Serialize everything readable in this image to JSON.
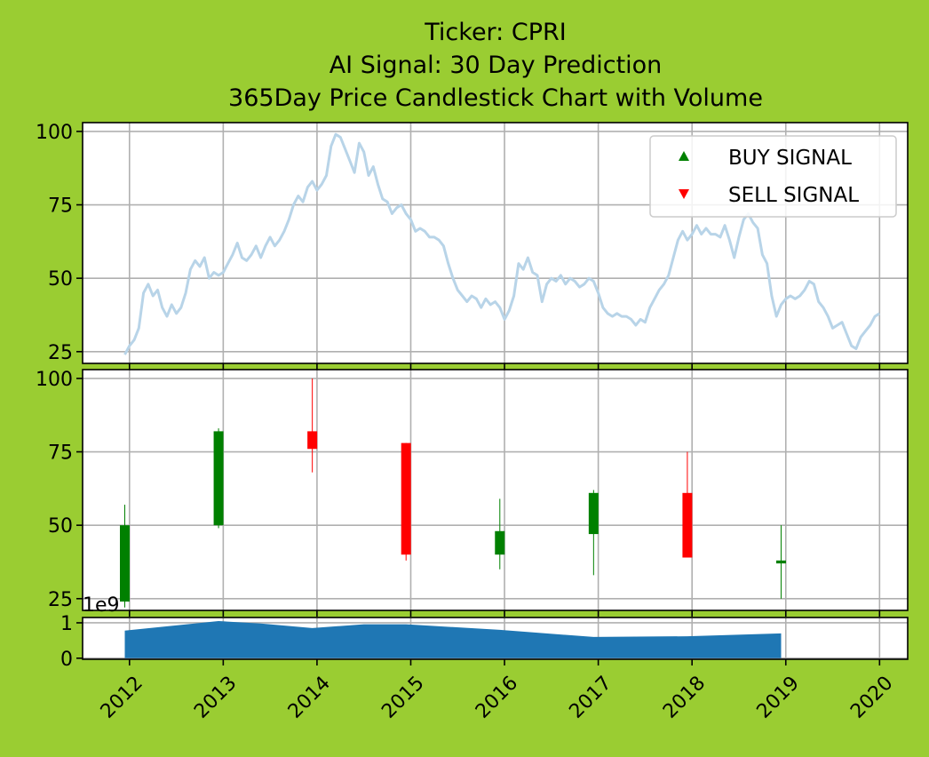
{
  "chart_data": {
    "title_lines": [
      "Ticker: CPRI",
      "AI Signal: 30 Day Prediction",
      "365Day Price Candlestick Chart with Volume"
    ],
    "type": "composite",
    "background_color": "#9acd32",
    "x_ticks": [
      "2012",
      "2013",
      "2014",
      "2015",
      "2016",
      "2017",
      "2018",
      "2019",
      "2020"
    ],
    "x_range": [
      2011.5,
      2020.3
    ],
    "grid": true,
    "price_panel": {
      "type": "line",
      "ylim": [
        21,
        103
      ],
      "y_ticks": [
        25,
        50,
        75,
        100
      ],
      "line_color": "#b8d4e8",
      "legend": {
        "position": "top-right",
        "entries": [
          {
            "label": "BUY SIGNAL",
            "marker": "triangle-up",
            "color": "#008000"
          },
          {
            "label": "SELL SIGNAL",
            "marker": "triangle-down",
            "color": "#ff0000"
          }
        ]
      },
      "points": [
        [
          2011.95,
          24
        ],
        [
          2012.0,
          27
        ],
        [
          2012.05,
          29
        ],
        [
          2012.1,
          33
        ],
        [
          2012.15,
          45
        ],
        [
          2012.2,
          48
        ],
        [
          2012.25,
          44
        ],
        [
          2012.3,
          46
        ],
        [
          2012.35,
          40
        ],
        [
          2012.4,
          37
        ],
        [
          2012.45,
          41
        ],
        [
          2012.5,
          38
        ],
        [
          2012.55,
          40
        ],
        [
          2012.6,
          45
        ],
        [
          2012.65,
          53
        ],
        [
          2012.7,
          56
        ],
        [
          2012.75,
          54
        ],
        [
          2012.8,
          57
        ],
        [
          2012.85,
          50
        ],
        [
          2012.9,
          52
        ],
        [
          2012.95,
          51
        ],
        [
          2013.0,
          52
        ],
        [
          2013.05,
          55
        ],
        [
          2013.1,
          58
        ],
        [
          2013.15,
          62
        ],
        [
          2013.2,
          57
        ],
        [
          2013.25,
          56
        ],
        [
          2013.3,
          58
        ],
        [
          2013.35,
          61
        ],
        [
          2013.4,
          57
        ],
        [
          2013.45,
          61
        ],
        [
          2013.5,
          64
        ],
        [
          2013.55,
          61
        ],
        [
          2013.6,
          63
        ],
        [
          2013.65,
          66
        ],
        [
          2013.7,
          70
        ],
        [
          2013.75,
          75
        ],
        [
          2013.8,
          78
        ],
        [
          2013.85,
          76
        ],
        [
          2013.9,
          81
        ],
        [
          2013.95,
          83
        ],
        [
          2014.0,
          80
        ],
        [
          2014.05,
          82
        ],
        [
          2014.1,
          85
        ],
        [
          2014.15,
          95
        ],
        [
          2014.2,
          99
        ],
        [
          2014.25,
          98
        ],
        [
          2014.3,
          94
        ],
        [
          2014.35,
          90
        ],
        [
          2014.4,
          86
        ],
        [
          2014.45,
          96
        ],
        [
          2014.5,
          93
        ],
        [
          2014.55,
          85
        ],
        [
          2014.6,
          88
        ],
        [
          2014.65,
          82
        ],
        [
          2014.7,
          77
        ],
        [
          2014.75,
          76
        ],
        [
          2014.8,
          72
        ],
        [
          2014.85,
          74
        ],
        [
          2014.9,
          75
        ],
        [
          2014.95,
          72
        ],
        [
          2015.0,
          70
        ],
        [
          2015.05,
          66
        ],
        [
          2015.1,
          67
        ],
        [
          2015.15,
          66
        ],
        [
          2015.2,
          64
        ],
        [
          2015.25,
          64
        ],
        [
          2015.3,
          63
        ],
        [
          2015.35,
          61
        ],
        [
          2015.4,
          55
        ],
        [
          2015.45,
          50
        ],
        [
          2015.5,
          46
        ],
        [
          2015.55,
          44
        ],
        [
          2015.6,
          42
        ],
        [
          2015.65,
          44
        ],
        [
          2015.7,
          43
        ],
        [
          2015.75,
          40
        ],
        [
          2015.8,
          43
        ],
        [
          2015.85,
          41
        ],
        [
          2015.9,
          42
        ],
        [
          2015.95,
          40
        ],
        [
          2016.0,
          36
        ],
        [
          2016.05,
          39
        ],
        [
          2016.1,
          44
        ],
        [
          2016.15,
          55
        ],
        [
          2016.2,
          53
        ],
        [
          2016.25,
          57
        ],
        [
          2016.3,
          52
        ],
        [
          2016.35,
          51
        ],
        [
          2016.4,
          42
        ],
        [
          2016.45,
          48
        ],
        [
          2016.5,
          50
        ],
        [
          2016.55,
          49
        ],
        [
          2016.6,
          51
        ],
        [
          2016.65,
          48
        ],
        [
          2016.7,
          50
        ],
        [
          2016.75,
          49
        ],
        [
          2016.8,
          47
        ],
        [
          2016.85,
          48
        ],
        [
          2016.9,
          50
        ],
        [
          2016.95,
          49
        ],
        [
          2017.0,
          45
        ],
        [
          2017.05,
          40
        ],
        [
          2017.1,
          38
        ],
        [
          2017.15,
          37
        ],
        [
          2017.2,
          38
        ],
        [
          2017.25,
          37
        ],
        [
          2017.3,
          37
        ],
        [
          2017.35,
          36
        ],
        [
          2017.4,
          34
        ],
        [
          2017.45,
          36
        ],
        [
          2017.5,
          35
        ],
        [
          2017.55,
          40
        ],
        [
          2017.6,
          43
        ],
        [
          2017.65,
          46
        ],
        [
          2017.7,
          48
        ],
        [
          2017.75,
          51
        ],
        [
          2017.8,
          57
        ],
        [
          2017.85,
          63
        ],
        [
          2017.9,
          66
        ],
        [
          2017.95,
          63
        ],
        [
          2018.0,
          65
        ],
        [
          2018.05,
          68
        ],
        [
          2018.1,
          65
        ],
        [
          2018.15,
          67
        ],
        [
          2018.2,
          65
        ],
        [
          2018.25,
          65
        ],
        [
          2018.3,
          64
        ],
        [
          2018.35,
          68
        ],
        [
          2018.4,
          63
        ],
        [
          2018.45,
          57
        ],
        [
          2018.5,
          64
        ],
        [
          2018.55,
          70
        ],
        [
          2018.6,
          72
        ],
        [
          2018.65,
          69
        ],
        [
          2018.7,
          67
        ],
        [
          2018.75,
          58
        ],
        [
          2018.8,
          55
        ],
        [
          2018.85,
          44
        ],
        [
          2018.9,
          37
        ],
        [
          2018.95,
          41
        ],
        [
          2019.0,
          43
        ],
        [
          2019.05,
          44
        ],
        [
          2019.1,
          43
        ],
        [
          2019.15,
          44
        ],
        [
          2019.2,
          46
        ],
        [
          2019.25,
          49
        ],
        [
          2019.3,
          48
        ],
        [
          2019.35,
          42
        ],
        [
          2019.4,
          40
        ],
        [
          2019.45,
          37
        ],
        [
          2019.5,
          33
        ],
        [
          2019.55,
          34
        ],
        [
          2019.6,
          35
        ],
        [
          2019.65,
          31
        ],
        [
          2019.7,
          27
        ],
        [
          2019.75,
          26
        ],
        [
          2019.8,
          30
        ],
        [
          2019.85,
          32
        ],
        [
          2019.9,
          34
        ],
        [
          2019.95,
          37
        ],
        [
          2020.0,
          38
        ]
      ]
    },
    "candle_panel": {
      "type": "candlestick",
      "ylim": [
        21,
        103
      ],
      "y_ticks": [
        25,
        50,
        75,
        100
      ],
      "up_color": "#008000",
      "down_color": "#ff0000",
      "candles": [
        {
          "x": 2011.95,
          "open": 24,
          "close": 50,
          "high": 57,
          "low": 22
        },
        {
          "x": 2012.95,
          "open": 50,
          "close": 82,
          "high": 83,
          "low": 49
        },
        {
          "x": 2013.95,
          "open": 82,
          "close": 76,
          "high": 100,
          "low": 68
        },
        {
          "x": 2014.95,
          "open": 78,
          "close": 40,
          "high": 78,
          "low": 38
        },
        {
          "x": 2015.95,
          "open": 40,
          "close": 48,
          "high": 59,
          "low": 35
        },
        {
          "x": 2016.95,
          "open": 47,
          "close": 61,
          "high": 62,
          "low": 33
        },
        {
          "x": 2017.95,
          "open": 61,
          "close": 39,
          "high": 75,
          "low": 39
        },
        {
          "x": 2018.95,
          "open": 37,
          "close": 38,
          "high": 50,
          "low": 25
        }
      ]
    },
    "volume_panel": {
      "type": "area",
      "scale_label": "1e9",
      "ylim": [
        -0.03,
        1.15
      ],
      "y_ticks": [
        0,
        1
      ],
      "fill_color": "#1f77b4",
      "points": [
        [
          2011.95,
          0.78
        ],
        [
          2012.95,
          1.05
        ],
        [
          2013.4,
          0.98
        ],
        [
          2013.95,
          0.85
        ],
        [
          2014.5,
          0.96
        ],
        [
          2014.95,
          0.96
        ],
        [
          2015.95,
          0.8
        ],
        [
          2016.95,
          0.6
        ],
        [
          2017.95,
          0.62
        ],
        [
          2018.95,
          0.7
        ]
      ]
    }
  }
}
